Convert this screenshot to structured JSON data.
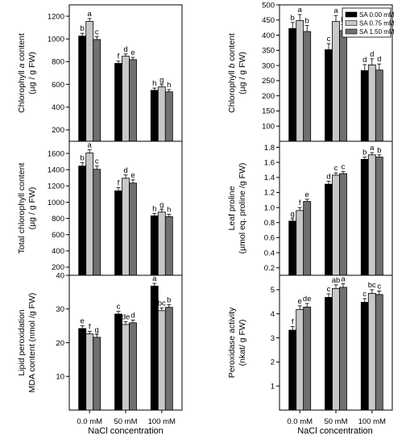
{
  "legend": {
    "items": [
      {
        "label": "SA 0.00 mM",
        "color": "#000000"
      },
      {
        "label": "SA 0.75 mM",
        "color": "#c8c8c8"
      },
      {
        "label": "SA 1.50 mM",
        "color": "#707070"
      }
    ],
    "placement": "top-right of right-top panel"
  },
  "x_title": "NaCl concentration",
  "chart_data": [
    {
      "type": "bar",
      "ylabel": [
        "Chlorophyll a content",
        "(µg / g FW)"
      ],
      "ylabel_italic": "a",
      "categories": [
        "0.0 mM",
        "50 mM",
        "100 mM"
      ],
      "ylim": [
        100,
        1300
      ],
      "yticks": [
        200,
        400,
        600,
        800,
        1000,
        1200
      ],
      "series": [
        {
          "name": "SA 0.00 mM",
          "values": [
            1025,
            785,
            548
          ],
          "errors": [
            25,
            20,
            20
          ],
          "letters": [
            "b",
            "f",
            "h"
          ]
        },
        {
          "name": "SA 0.75 mM",
          "values": [
            1155,
            848,
            578
          ],
          "errors": [
            25,
            20,
            20
          ],
          "letters": [
            "a",
            "d",
            "g"
          ]
        },
        {
          "name": "SA 1.50 mM",
          "values": [
            995,
            818,
            535
          ],
          "errors": [
            25,
            20,
            20
          ],
          "letters": [
            "c",
            "e",
            "h"
          ]
        }
      ]
    },
    {
      "type": "bar",
      "ylabel": [
        "Chlorophyll b content",
        "(µg / g FW)"
      ],
      "ylabel_italic": "b",
      "categories": [
        "0.0 mM",
        "50 mM",
        "100 mM"
      ],
      "ylim": [
        50,
        500
      ],
      "yticks": [
        100,
        150,
        200,
        250,
        300,
        350,
        400,
        450,
        500
      ],
      "series": [
        {
          "name": "SA 0.00 mM",
          "values": [
            422,
            352,
            283
          ],
          "errors": [
            20,
            20,
            20
          ],
          "letters": [
            "b",
            "c",
            "d"
          ]
        },
        {
          "name": "SA 0.75 mM",
          "values": [
            448,
            445,
            302
          ],
          "errors": [
            20,
            20,
            20
          ],
          "letters": [
            "a",
            "a",
            "d"
          ]
        },
        {
          "name": "SA 1.50 mM",
          "values": [
            412,
            415,
            285
          ],
          "errors": [
            20,
            20,
            20
          ],
          "letters": [
            "b",
            "b",
            "d"
          ]
        }
      ]
    },
    {
      "type": "bar",
      "ylabel": [
        "Total chlorophyll content",
        "(µg / g FW)"
      ],
      "categories": [
        "0.0 mM",
        "50 mM",
        "100 mM"
      ],
      "ylim": [
        100,
        1750
      ],
      "yticks": [
        200,
        400,
        600,
        800,
        1000,
        1200,
        1400,
        1600
      ],
      "series": [
        {
          "name": "SA 0.00 mM",
          "values": [
            1445,
            1140,
            832
          ],
          "errors": [
            40,
            40,
            30
          ],
          "letters": [
            "b",
            "f",
            "h"
          ]
        },
        {
          "name": "SA 0.75 mM",
          "values": [
            1605,
            1295,
            878
          ],
          "errors": [
            40,
            40,
            30
          ],
          "letters": [
            "a",
            "d",
            "g"
          ]
        },
        {
          "name": "SA 1.50 mM",
          "values": [
            1405,
            1235,
            822
          ],
          "errors": [
            40,
            40,
            30
          ],
          "letters": [
            "c",
            "e",
            "h"
          ]
        }
      ]
    },
    {
      "type": "bar",
      "ylabel": [
        "Leaf proline",
        "(µmol eq. proline /g FW)"
      ],
      "categories": [
        "0.0 mM",
        "50 mM",
        "100 mM"
      ],
      "ylim": [
        0.1,
        1.88
      ],
      "yticks": [
        0.2,
        0.4,
        0.6,
        0.8,
        1.0,
        1.2,
        1.4,
        1.6,
        1.8
      ],
      "ytick_labels": [
        "0.2",
        "0.4",
        "0.6",
        "0.8",
        "1.0",
        "1.2",
        "1.4",
        "1.6",
        "1.8"
      ],
      "series": [
        {
          "name": "SA 0.00 mM",
          "values": [
            0.82,
            1.31,
            1.64
          ],
          "errors": [
            0.03,
            0.04,
            0.03
          ],
          "letters": [
            "g",
            "d",
            "b"
          ]
        },
        {
          "name": "SA 0.75 mM",
          "values": [
            0.96,
            1.43,
            1.7
          ],
          "errors": [
            0.04,
            0.03,
            0.03
          ],
          "letters": [
            "f",
            "c",
            "a"
          ]
        },
        {
          "name": "SA 1.50 mM",
          "values": [
            1.08,
            1.45,
            1.67
          ],
          "errors": [
            0.03,
            0.03,
            0.03
          ],
          "letters": [
            "e",
            "c",
            "b"
          ]
        }
      ]
    },
    {
      "type": "bar",
      "ylabel": [
        "Lipid peroxidation",
        "MDA content (nmol /g FW)"
      ],
      "categories": [
        "0.0 mM",
        "50 mM",
        "100 mM"
      ],
      "ylim": [
        0,
        40
      ],
      "yticks": [
        10,
        20,
        30,
        40
      ],
      "series": [
        {
          "name": "SA 0.00 mM",
          "values": [
            24.2,
            28.5,
            36.8
          ],
          "errors": [
            0.8,
            0.8,
            0.8
          ],
          "letters": [
            "e",
            "c",
            "a"
          ]
        },
        {
          "name": "SA 0.75 mM",
          "values": [
            22.6,
            25.4,
            29.5
          ],
          "errors": [
            0.8,
            0.8,
            0.8
          ],
          "letters": [
            "f",
            "de",
            "bc"
          ]
        },
        {
          "name": "SA 1.50 mM",
          "values": [
            21.6,
            25.9,
            30.5
          ],
          "errors": [
            0.8,
            0.8,
            0.8
          ],
          "letters": [
            "g",
            "d",
            "b"
          ]
        }
      ]
    },
    {
      "type": "bar",
      "ylabel": [
        "Peroxidase activity",
        "(nkat/ g FW)"
      ],
      "categories": [
        "0.0 mM",
        "50 mM",
        "100 mM"
      ],
      "ylim": [
        0,
        5.6
      ],
      "yticks": [
        1,
        2,
        3,
        4,
        5
      ],
      "series": [
        {
          "name": "SA 0.00 mM",
          "values": [
            3.32,
            4.68,
            4.48
          ],
          "errors": [
            0.15,
            0.15,
            0.15
          ],
          "letters": [
            "f",
            "c",
            "c"
          ]
        },
        {
          "name": "SA 0.75 mM",
          "values": [
            4.18,
            5.05,
            4.85
          ],
          "errors": [
            0.15,
            0.15,
            0.15
          ],
          "letters": [
            "e",
            "ab",
            "bc"
          ]
        },
        {
          "name": "SA 1.50 mM",
          "values": [
            4.28,
            5.1,
            4.8
          ],
          "errors": [
            0.15,
            0.15,
            0.15
          ],
          "letters": [
            "de",
            "a",
            "c"
          ]
        }
      ]
    }
  ]
}
